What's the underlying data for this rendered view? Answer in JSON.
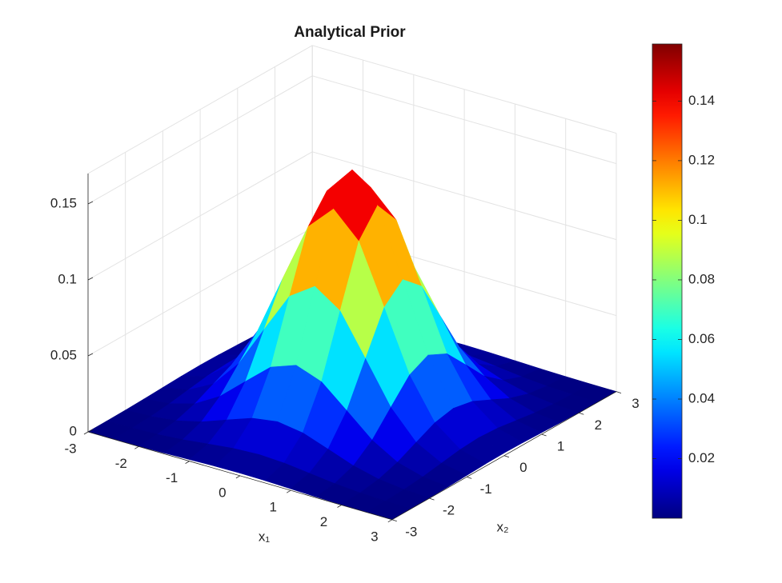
{
  "chart_data": {
    "type": "surface",
    "title": "Analytical Prior",
    "xlabel": "x₁",
    "ylabel": "x₂",
    "x": [
      -3,
      -2.5,
      -2,
      -1.5,
      -1,
      -0.5,
      0,
      0.5,
      1,
      1.5,
      2,
      2.5,
      3
    ],
    "y": [
      -3,
      -2.5,
      -2,
      -1.5,
      -1,
      -0.5,
      0,
      0.5,
      1,
      1.5,
      2,
      2.5,
      3
    ],
    "z": [
      [
        2e-05,
        8e-05,
        0.00024,
        0.00057,
        0.00107,
        0.00156,
        0.00177,
        0.00156,
        0.00107,
        0.00057,
        0.00024,
        8e-05,
        2e-05
      ],
      [
        8e-05,
        0.00031,
        0.00095,
        0.00227,
        0.00424,
        0.00617,
        0.00699,
        0.00617,
        0.00424,
        0.00227,
        0.00095,
        0.00031,
        8e-05
      ],
      [
        0.00024,
        0.00095,
        0.00292,
        0.00699,
        0.01306,
        0.01901,
        0.02154,
        0.01901,
        0.01306,
        0.00699,
        0.00292,
        0.00095,
        0.00024
      ],
      [
        0.00057,
        0.00227,
        0.00699,
        0.01678,
        0.03134,
        0.0456,
        0.05167,
        0.0456,
        0.03134,
        0.01678,
        0.00699,
        0.00227,
        0.00057
      ],
      [
        0.00107,
        0.00424,
        0.01306,
        0.03134,
        0.05855,
        0.08519,
        0.09653,
        0.08519,
        0.05855,
        0.03134,
        0.01306,
        0.00424,
        0.00107
      ],
      [
        0.00156,
        0.00617,
        0.01901,
        0.0456,
        0.08519,
        0.12395,
        0.14045,
        0.12395,
        0.08519,
        0.0456,
        0.01901,
        0.00617,
        0.00156
      ],
      [
        0.00177,
        0.00699,
        0.02154,
        0.05167,
        0.09653,
        0.14045,
        0.15915,
        0.14045,
        0.09653,
        0.05167,
        0.02154,
        0.00699,
        0.00177
      ],
      [
        0.00156,
        0.00617,
        0.01901,
        0.0456,
        0.08519,
        0.12395,
        0.14045,
        0.12395,
        0.08519,
        0.0456,
        0.01901,
        0.00617,
        0.00156
      ],
      [
        0.00107,
        0.00424,
        0.01306,
        0.03134,
        0.05855,
        0.08519,
        0.09653,
        0.08519,
        0.05855,
        0.03134,
        0.01306,
        0.00424,
        0.00107
      ],
      [
        0.00057,
        0.00227,
        0.00699,
        0.01678,
        0.03134,
        0.0456,
        0.05167,
        0.0456,
        0.03134,
        0.01678,
        0.00699,
        0.00227,
        0.00057
      ],
      [
        0.00024,
        0.00095,
        0.00292,
        0.00699,
        0.01306,
        0.01901,
        0.02154,
        0.01901,
        0.01306,
        0.00699,
        0.00292,
        0.00095,
        0.00024
      ],
      [
        8e-05,
        0.00031,
        0.00095,
        0.00227,
        0.00424,
        0.00617,
        0.00699,
        0.00617,
        0.00424,
        0.00227,
        0.00095,
        0.00031,
        8e-05
      ],
      [
        2e-05,
        8e-05,
        0.00024,
        0.00057,
        0.00107,
        0.00156,
        0.00177,
        0.00156,
        0.00107,
        0.00057,
        0.00024,
        8e-05,
        2e-05
      ]
    ],
    "xlim": [
      -3,
      3
    ],
    "ylim": [
      -3,
      3
    ],
    "zlim": [
      0,
      0.17
    ],
    "xticks": [
      -3,
      -2,
      -1,
      0,
      1,
      2,
      3
    ],
    "yticks": [
      -3,
      -2,
      -1,
      0,
      1,
      2,
      3
    ],
    "zticks": [
      0,
      0.05,
      0.1,
      0.15
    ],
    "colormap": "jet",
    "clim": [
      2e-05,
      0.15915
    ],
    "colorbar_ticks": [
      0.02,
      0.04,
      0.06,
      0.08,
      0.1,
      0.12,
      0.14
    ],
    "grid": true
  }
}
